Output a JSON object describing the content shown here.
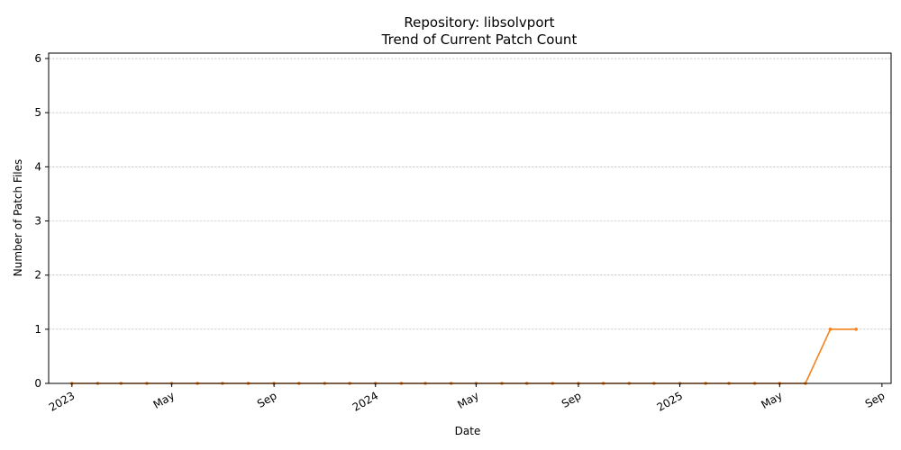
{
  "chart_data": {
    "type": "line",
    "title": [
      "Repository: libsolvport",
      "Trend of Current Patch Count"
    ],
    "xlabel": "Date",
    "ylabel": "Number of Patch Files",
    "ylim": [
      0,
      6.1
    ],
    "xlim": [
      "2022-12-04",
      "2025-09-12"
    ],
    "y_ticks": [
      0,
      1,
      2,
      3,
      4,
      5,
      6
    ],
    "x_ticks": [
      {
        "date": "2023-01-01",
        "label": "2023"
      },
      {
        "date": "2023-05-01",
        "label": "May"
      },
      {
        "date": "2023-09-01",
        "label": "Sep"
      },
      {
        "date": "2024-01-01",
        "label": "2024"
      },
      {
        "date": "2024-05-01",
        "label": "May"
      },
      {
        "date": "2024-09-01",
        "label": "Sep"
      },
      {
        "date": "2025-01-01",
        "label": "2025"
      },
      {
        "date": "2025-05-01",
        "label": "May"
      },
      {
        "date": "2025-09-01",
        "label": "Sep"
      }
    ],
    "grid": "y-dashed",
    "color": "#f5821f",
    "series": [
      {
        "name": "Current Patch Count",
        "dates": [
          "2023-01-01",
          "2023-02-01",
          "2023-03-01",
          "2023-04-01",
          "2023-05-01",
          "2023-06-01",
          "2023-07-01",
          "2023-08-01",
          "2023-09-01",
          "2023-10-01",
          "2023-11-01",
          "2023-12-01",
          "2024-01-01",
          "2024-02-01",
          "2024-03-01",
          "2024-04-01",
          "2024-05-01",
          "2024-06-01",
          "2024-07-01",
          "2024-08-01",
          "2024-09-01",
          "2024-10-01",
          "2024-11-01",
          "2024-12-01",
          "2025-01-01",
          "2025-02-01",
          "2025-03-01",
          "2025-04-01",
          "2025-05-01",
          "2025-06-01",
          "2025-07-01",
          "2025-08-01"
        ],
        "values": [
          0,
          0,
          0,
          0,
          0,
          0,
          0,
          0,
          0,
          0,
          0,
          0,
          0,
          0,
          0,
          0,
          0,
          0,
          0,
          0,
          0,
          0,
          0,
          0,
          0,
          0,
          0,
          0,
          0,
          0,
          1,
          1
        ]
      }
    ]
  }
}
